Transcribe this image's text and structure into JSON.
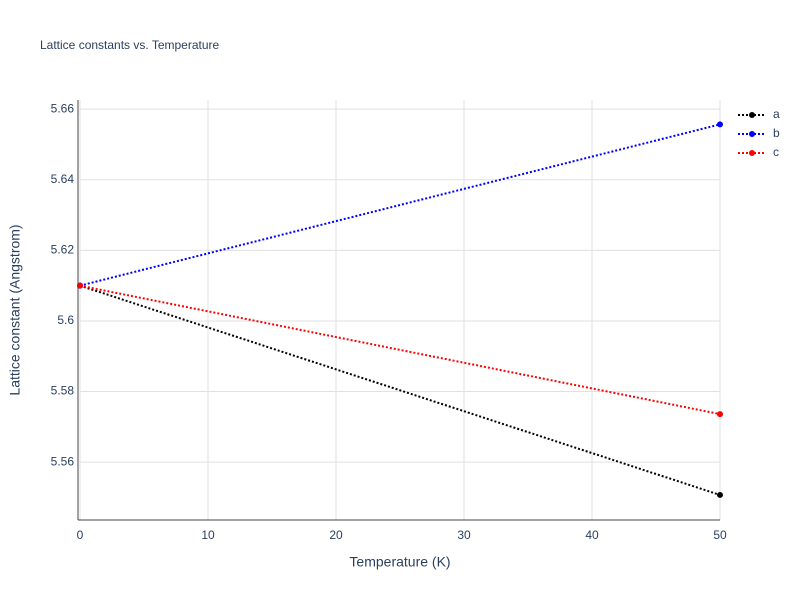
{
  "chart_data": {
    "type": "line",
    "title": "Lattice constants vs. Temperature",
    "x_label": "Temperature (K)",
    "y_label": "Lattice constant (Angstrom)",
    "x": [
      0,
      50
    ],
    "series": [
      {
        "name": "a",
        "color": "#000000",
        "values": [
          5.61,
          5.5507
        ]
      },
      {
        "name": "b",
        "color": "#0000ff",
        "values": [
          5.61,
          5.6557
        ]
      },
      {
        "name": "c",
        "color": "#ff0000",
        "values": [
          5.61,
          5.5736
        ]
      }
    ],
    "xlim": [
      0,
      50
    ],
    "xticks": [
      0,
      10,
      20,
      30,
      40,
      50
    ],
    "ylim": [
      5.5436,
      5.6626
    ],
    "yticks": [
      5.56,
      5.58,
      5.6,
      5.62,
      5.64,
      5.66
    ],
    "grid": true,
    "legend": "top-right"
  }
}
